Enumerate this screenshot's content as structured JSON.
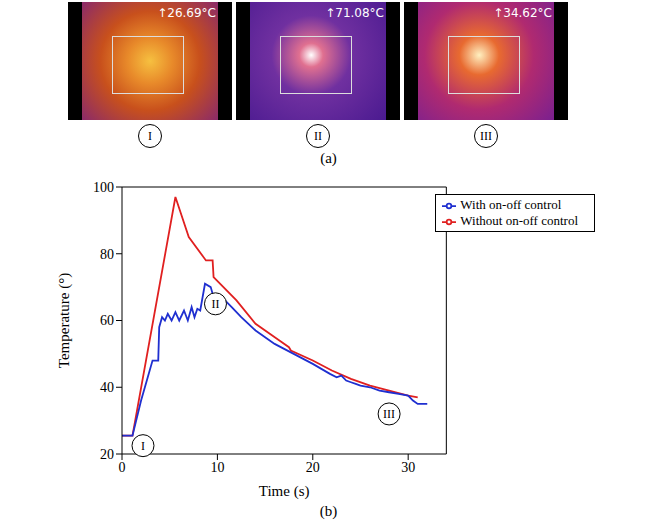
{
  "panel_a": {
    "caption": "(a)",
    "images": [
      {
        "label": "I",
        "max_temp": "↑26.69°C"
      },
      {
        "label": "II",
        "max_temp": "↑71.08°C"
      },
      {
        "label": "III",
        "max_temp": "↑34.62°C"
      }
    ]
  },
  "chart_data": {
    "type": "line",
    "caption": "(b)",
    "x_label": "Time (s)",
    "y_label": "Temperature (°)",
    "xlim": [
      0,
      34
    ],
    "xticks": [
      0,
      10,
      20,
      30
    ],
    "ylim": [
      20,
      100
    ],
    "yticks": [
      20,
      40,
      60,
      80,
      100
    ],
    "legend": "upper right",
    "series": [
      {
        "name": "Without on-off control",
        "color": "#e02020",
        "x": [
          0,
          1.1,
          5.6,
          7,
          8.8,
          9.5,
          9.6,
          12,
          14,
          16.5,
          17.5,
          17.7,
          20,
          22,
          24,
          26,
          28,
          30,
          31
        ],
        "values": [
          25.5,
          25.5,
          97,
          85,
          78,
          78,
          73,
          66,
          59,
          54,
          52,
          51,
          48,
          45,
          42.5,
          40.5,
          39,
          37.5,
          37
        ]
      },
      {
        "name": "With on-off control",
        "color": "#1f2fd0",
        "x": [
          0,
          1.1,
          2,
          2.7,
          3.2,
          3.8,
          3.9,
          4.2,
          4.5,
          4.8,
          5.2,
          5.6,
          6,
          6.5,
          6.9,
          7.3,
          7.6,
          7.9,
          8.2,
          8.7,
          9.3,
          9.6,
          10.3,
          10.8,
          11.5,
          12.5,
          14,
          16,
          18,
          20,
          21.8,
          22.5,
          23,
          23.5,
          24,
          24.5,
          25,
          26,
          27,
          28,
          29,
          30,
          30.5,
          31,
          32
        ],
        "values": [
          25.5,
          25.5,
          36,
          43,
          48,
          48,
          58,
          61,
          60,
          62,
          60,
          62.5,
          60,
          63,
          60,
          64,
          61,
          63.5,
          63,
          71,
          70,
          67,
          66,
          66,
          64,
          61,
          57,
          53,
          50,
          47,
          44,
          43,
          43.5,
          42,
          41.5,
          41,
          40.5,
          40,
          39,
          38.5,
          38,
          37.5,
          36,
          35,
          35
        ]
      }
    ],
    "annotations": [
      {
        "text": "I",
        "x": 2.2,
        "y": 22.5
      },
      {
        "text": "II",
        "x": 9.8,
        "y": 65
      },
      {
        "text": "III",
        "x": 28,
        "y": 32
      }
    ]
  }
}
